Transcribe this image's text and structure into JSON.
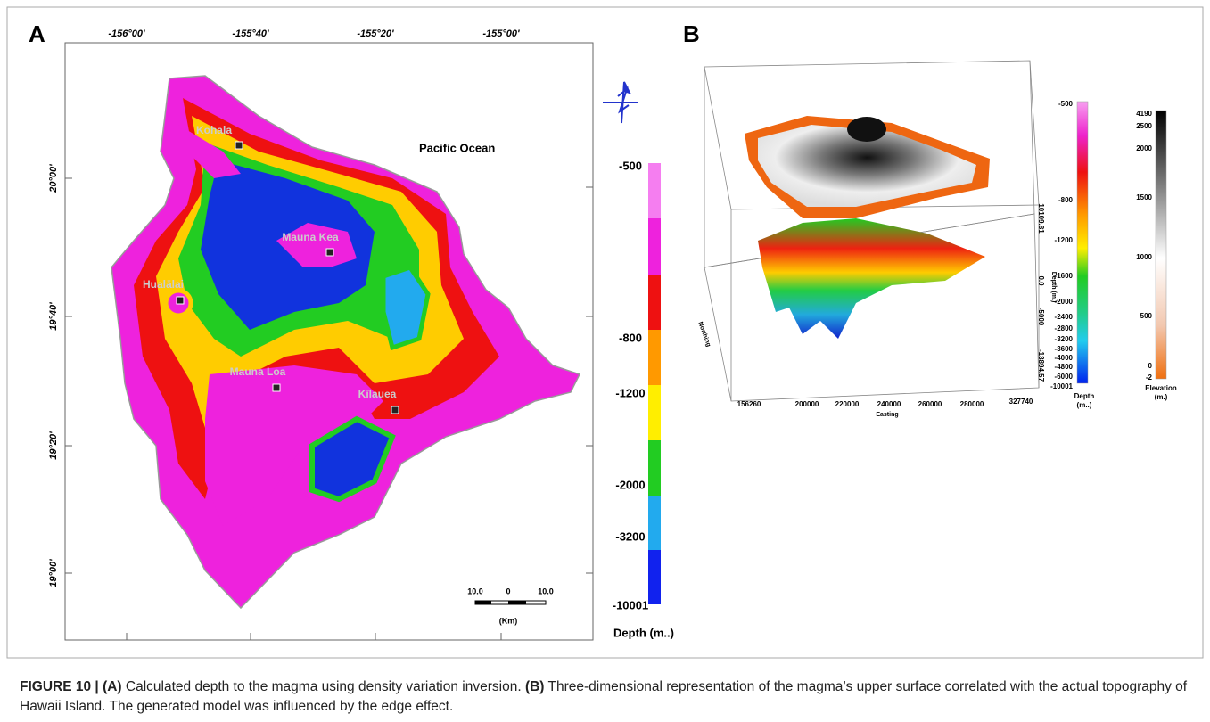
{
  "panel_a": {
    "label": "A",
    "lon_ticks": [
      "-156°00'",
      "-155°40'",
      "-155°20'",
      "-155°00'"
    ],
    "lat_ticks": [
      "20°00'",
      "19°40'",
      "19°20'",
      "19°00'"
    ],
    "ocean": "Pacific Ocean",
    "places": [
      "Kohala",
      "Mauna Kea",
      "Hualālai",
      "Mauna Loa",
      "Kīlauea"
    ],
    "scale": {
      "left": "10.0",
      "mid": "0",
      "right": "10.0",
      "unit": "(Km)"
    },
    "legend": {
      "ticks": [
        "-500",
        "-800",
        "-1200",
        "-2000",
        "-3200",
        "-10001"
      ],
      "title": "Depth (m..)"
    }
  },
  "panel_b": {
    "label": "B",
    "easting_ticks": [
      "156260",
      "200000",
      "220000",
      "240000",
      "260000",
      "280000",
      "327740"
    ],
    "easting_title": "Easting",
    "northing_title": "Northing",
    "depth_ticks": [
      "10109.81",
      "0.0",
      "-5000",
      "-13894.57"
    ],
    "depth_title": "Depth (m.)",
    "depth_legend": {
      "ticks": [
        "-500",
        "-800",
        "-1200",
        "-1600",
        "-2000",
        "-2400",
        "-2800",
        "-3200",
        "-3600",
        "-4000",
        "-4800",
        "-6000",
        "-10001"
      ],
      "title": [
        "Depth",
        "(m..)"
      ]
    },
    "elevation_legend": {
      "ticks": [
        "4190",
        "2500",
        "2000",
        "1500",
        "1000",
        "500",
        "0",
        "-2"
      ],
      "title": [
        "Elevation",
        "(m.)"
      ]
    }
  },
  "caption": {
    "figure": "FIGURE 10 |",
    "a_label": "(A)",
    "a_text": "Calculated depth to the magma using density variation inversion.",
    "b_label": "(B)",
    "b_text": "Three-dimensional representation of the magma’s upper surface correlated with the actual topography of Hawaii Island. The generated model was influenced by the edge effect."
  }
}
